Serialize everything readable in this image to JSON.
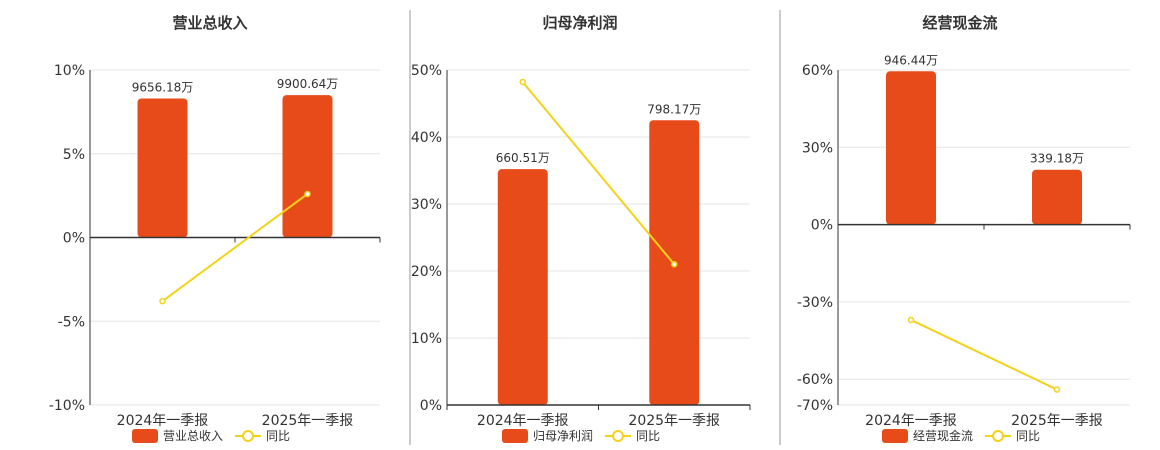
{
  "colors": {
    "bar": "#E84B1A",
    "line": "#F2D21B",
    "grid": "#E6E6E6",
    "axis": "#333333",
    "divider": "#999999"
  },
  "chart_data": [
    {
      "type": "bar",
      "title": "营业总收入",
      "categories": [
        "2024年一季报",
        "2025年一季报"
      ],
      "ylim": [
        -10,
        10
      ],
      "yticks": [
        "10%",
        "5%",
        "0%",
        "-5%",
        "-10%"
      ],
      "ytick_values": [
        10,
        5,
        0,
        -5,
        -10
      ],
      "series": [
        {
          "name": "营业总收入",
          "kind": "bar",
          "values": [
            8.3,
            8.5
          ],
          "labels": [
            "9656.18万",
            "9900.64万"
          ]
        },
        {
          "name": "同比",
          "kind": "line",
          "values": [
            -3.8,
            2.6
          ]
        }
      ],
      "grid": true,
      "legend": "bottom-center"
    },
    {
      "type": "bar",
      "title": "归母净利润",
      "categories": [
        "2024年一季报",
        "2025年一季报"
      ],
      "ylim": [
        0,
        50
      ],
      "yticks": [
        "50%",
        "40%",
        "30%",
        "20%",
        "10%",
        "0%"
      ],
      "ytick_values": [
        50,
        40,
        30,
        20,
        10,
        0
      ],
      "series": [
        {
          "name": "归母净利润",
          "kind": "bar",
          "values": [
            35.2,
            42.5
          ],
          "labels": [
            "660.51万",
            "798.17万"
          ]
        },
        {
          "name": "同比",
          "kind": "line",
          "values": [
            48.2,
            21.0
          ]
        }
      ],
      "grid": true,
      "legend": "bottom-center"
    },
    {
      "type": "bar",
      "title": "经营现金流",
      "categories": [
        "2024年一季报",
        "2025年一季报"
      ],
      "ylim": [
        -70,
        60
      ],
      "yticks": [
        "60%",
        "30%",
        "0%",
        "-30%",
        "-60%",
        "-70%"
      ],
      "ytick_values": [
        60,
        30,
        0,
        -30,
        -60,
        -70
      ],
      "series": [
        {
          "name": "经营现金流",
          "kind": "bar",
          "values": [
            59.5,
            21.3
          ],
          "labels": [
            "946.44万",
            "339.18万"
          ]
        },
        {
          "name": "同比",
          "kind": "line",
          "values": [
            -37.0,
            -64.0
          ]
        }
      ],
      "grid": true,
      "legend": "bottom-center"
    }
  ]
}
